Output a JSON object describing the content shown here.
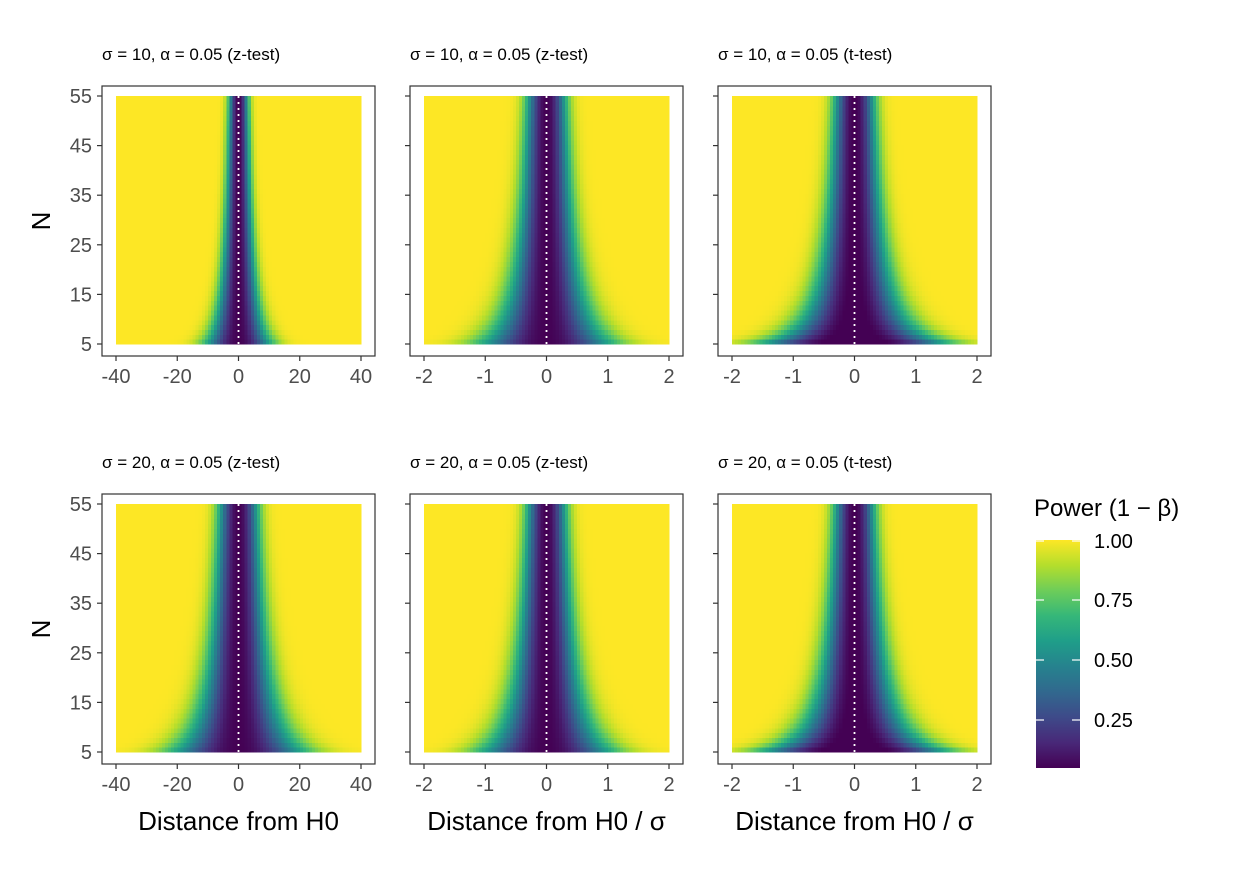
{
  "chart_data": [
    {
      "type": "heatmap",
      "title": "σ = 10,  α = 0.05 (z-test)",
      "xlabel": "",
      "ylabel": "N",
      "sigma": 10,
      "alpha": 0.05,
      "test": "z",
      "x_scale": "raw",
      "xlim": [
        -40,
        40
      ],
      "ylim": [
        5,
        55
      ],
      "xticks": [
        "-40",
        "-20",
        "0",
        "20",
        "40"
      ],
      "yticks": [
        "5",
        "15",
        "25",
        "35",
        "45",
        "55"
      ],
      "reference_line_x": 0
    },
    {
      "type": "heatmap",
      "title": "σ = 10,  α = 0.05 (z-test)",
      "xlabel": "",
      "ylabel": "",
      "sigma": 10,
      "alpha": 0.05,
      "test": "z",
      "x_scale": "standardized",
      "xlim": [
        -2,
        2
      ],
      "ylim": [
        5,
        55
      ],
      "xticks": [
        "-2",
        "-1",
        "0",
        "1",
        "2"
      ],
      "yticks": [],
      "reference_line_x": 0
    },
    {
      "type": "heatmap",
      "title": "σ = 10,  α = 0.05 (t-test)",
      "xlabel": "",
      "ylabel": "",
      "sigma": 10,
      "alpha": 0.05,
      "test": "t",
      "x_scale": "standardized",
      "xlim": [
        -2,
        2
      ],
      "ylim": [
        5,
        55
      ],
      "xticks": [
        "-2",
        "-1",
        "0",
        "1",
        "2"
      ],
      "yticks": [],
      "reference_line_x": 0
    },
    {
      "type": "heatmap",
      "title": "σ = 20,  α = 0.05 (z-test)",
      "xlabel": "Distance from H0",
      "ylabel": "N",
      "sigma": 20,
      "alpha": 0.05,
      "test": "z",
      "x_scale": "raw",
      "xlim": [
        -40,
        40
      ],
      "ylim": [
        5,
        55
      ],
      "xticks": [
        "-40",
        "-20",
        "0",
        "20",
        "40"
      ],
      "yticks": [
        "5",
        "15",
        "25",
        "35",
        "45",
        "55"
      ],
      "reference_line_x": 0
    },
    {
      "type": "heatmap",
      "title": "σ = 20,  α = 0.05 (z-test)",
      "xlabel": "Distance from H0 / σ",
      "ylabel": "",
      "sigma": 20,
      "alpha": 0.05,
      "test": "z",
      "x_scale": "standardized",
      "xlim": [
        -2,
        2
      ],
      "ylim": [
        5,
        55
      ],
      "xticks": [
        "-2",
        "-1",
        "0",
        "1",
        "2"
      ],
      "yticks": [],
      "reference_line_x": 0
    },
    {
      "type": "heatmap",
      "title": "σ = 20,  α = 0.05 (t-test)",
      "xlabel": "Distance from H0 / σ",
      "ylabel": "",
      "sigma": 20,
      "alpha": 0.05,
      "test": "t",
      "x_scale": "standardized",
      "xlim": [
        -2,
        2
      ],
      "ylim": [
        5,
        55
      ],
      "xticks": [
        "-2",
        "-1",
        "0",
        "1",
        "2"
      ],
      "yticks": [],
      "reference_line_x": 0
    }
  ],
  "legend": {
    "title": "Power (1 − β)",
    "ticks": [
      {
        "value": 1.0,
        "label": "1.00"
      },
      {
        "value": 0.75,
        "label": "0.75"
      },
      {
        "value": 0.5,
        "label": "0.50"
      },
      {
        "value": 0.25,
        "label": "0.25"
      }
    ],
    "range": [
      0.05,
      1.0
    ],
    "placement": "right",
    "colormap": "viridis"
  },
  "colors": {
    "viridis": [
      "#440154",
      "#482878",
      "#3E4A89",
      "#31688E",
      "#26828E",
      "#1F9E89",
      "#35B779",
      "#6DCD59",
      "#B4DE2C",
      "#FDE725"
    ],
    "reference_line": "#ffffff",
    "panel_border": "#333333",
    "tick_text": "#4d4d4d"
  }
}
